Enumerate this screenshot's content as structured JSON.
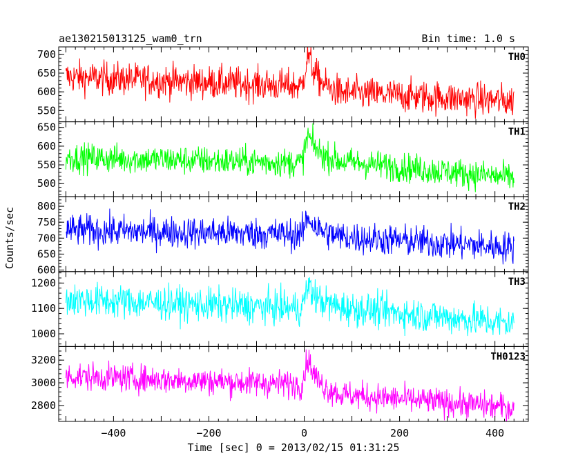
{
  "header": {
    "left_title": "ae130215013125_wam0_trn",
    "right_title": "Bin time: 1.0 s"
  },
  "chart_data": {
    "type": "line",
    "title": "ae130215013125_wam0_trn",
    "subtitle": "Bin time: 1.0 s",
    "xlabel": "Time [sec] 0 = 2013/02/15 01:31:25",
    "ylabel": "Counts/sec",
    "xlim": [
      -515,
      470
    ],
    "x_range": [
      -500,
      440
    ],
    "bin_time_s": 1.0,
    "x_ticks": [
      -400,
      -200,
      0,
      200,
      400
    ],
    "x_tick_labels": [
      "−400",
      "−200",
      "0",
      "200",
      "400"
    ],
    "grid": false,
    "legend": "none",
    "panels": [
      {
        "name": "TH0",
        "color": "#ff0000",
        "ylim": [
          520,
          720
        ],
        "y_ticks": [
          550,
          600,
          650,
          700
        ],
        "y_tick_labels": [
          "550",
          "600",
          "650",
          "700"
        ],
        "pre_level_start": 640,
        "pre_level_end": 615,
        "peak": 700,
        "post_level_start": 598,
        "post_level_end": 575,
        "noise_amplitude": 40
      },
      {
        "name": "TH1",
        "color": "#00ff00",
        "ylim": [
          465,
          665
        ],
        "y_ticks": [
          500,
          550,
          600,
          650
        ],
        "y_tick_labels": [
          "500",
          "550",
          "600",
          "650"
        ],
        "pre_level_start": 570,
        "pre_level_end": 555,
        "peak": 630,
        "post_level_start": 560,
        "post_level_end": 515,
        "noise_amplitude": 35
      },
      {
        "name": "TH2",
        "color": "#0000ff",
        "ylim": [
          595,
          830
        ],
        "y_ticks": [
          600,
          650,
          700,
          750,
          800
        ],
        "y_tick_labels": [
          "600",
          "650",
          "700",
          "750",
          "800"
        ],
        "pre_level_start": 725,
        "pre_level_end": 712,
        "peak": 770,
        "post_level_start": 705,
        "post_level_end": 670,
        "noise_amplitude": 45
      },
      {
        "name": "TH3",
        "color": "#00ffff",
        "ylim": [
          950,
          1245
        ],
        "y_ticks": [
          1000,
          1100,
          1200
        ],
        "y_tick_labels": [
          "1000",
          "1100",
          "1200"
        ],
        "pre_level_start": 1135,
        "pre_level_end": 1100,
        "peak": 1190,
        "post_level_start": 1105,
        "post_level_end": 1040,
        "noise_amplitude": 60
      },
      {
        "name": "TH0123",
        "color": "#ff00ff",
        "ylim": [
          2660,
          3320
        ],
        "y_ticks": [
          2800,
          3000,
          3200
        ],
        "y_tick_labels": [
          "2800",
          "3000",
          "3200"
        ],
        "pre_level_start": 3060,
        "pre_level_end": 2985,
        "peak": 3220,
        "post_level_start": 2900,
        "post_level_end": 2780,
        "noise_amplitude": 110
      }
    ]
  }
}
